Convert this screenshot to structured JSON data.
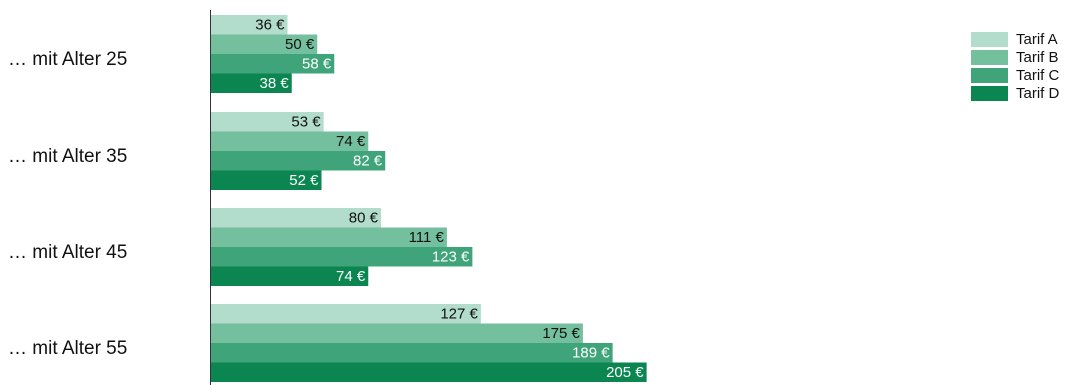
{
  "chart_data": {
    "type": "bar",
    "orientation": "horizontal",
    "categories": [
      "… mit Alter 25",
      "… mit Alter 35",
      "… mit Alter 45",
      "… mit Alter 55"
    ],
    "series": [
      {
        "name": "Tarif A",
        "values": [
          36,
          53,
          80,
          127
        ],
        "color": "#b2dccb"
      },
      {
        "name": "Tarif B",
        "values": [
          50,
          74,
          111,
          175
        ],
        "color": "#74bf9d"
      },
      {
        "name": "Tarif C",
        "values": [
          58,
          82,
          123,
          189
        ],
        "color": "#40a47a"
      },
      {
        "name": "Tarif D",
        "values": [
          38,
          52,
          74,
          205
        ],
        "color": "#0b8651"
      }
    ],
    "value_suffix": " €",
    "xlim": [
      0,
      205
    ],
    "grid": false,
    "legend_position": "top-right",
    "value_label_colors": [
      "#111111",
      "#111111",
      "#ffffff",
      "#ffffff"
    ]
  }
}
